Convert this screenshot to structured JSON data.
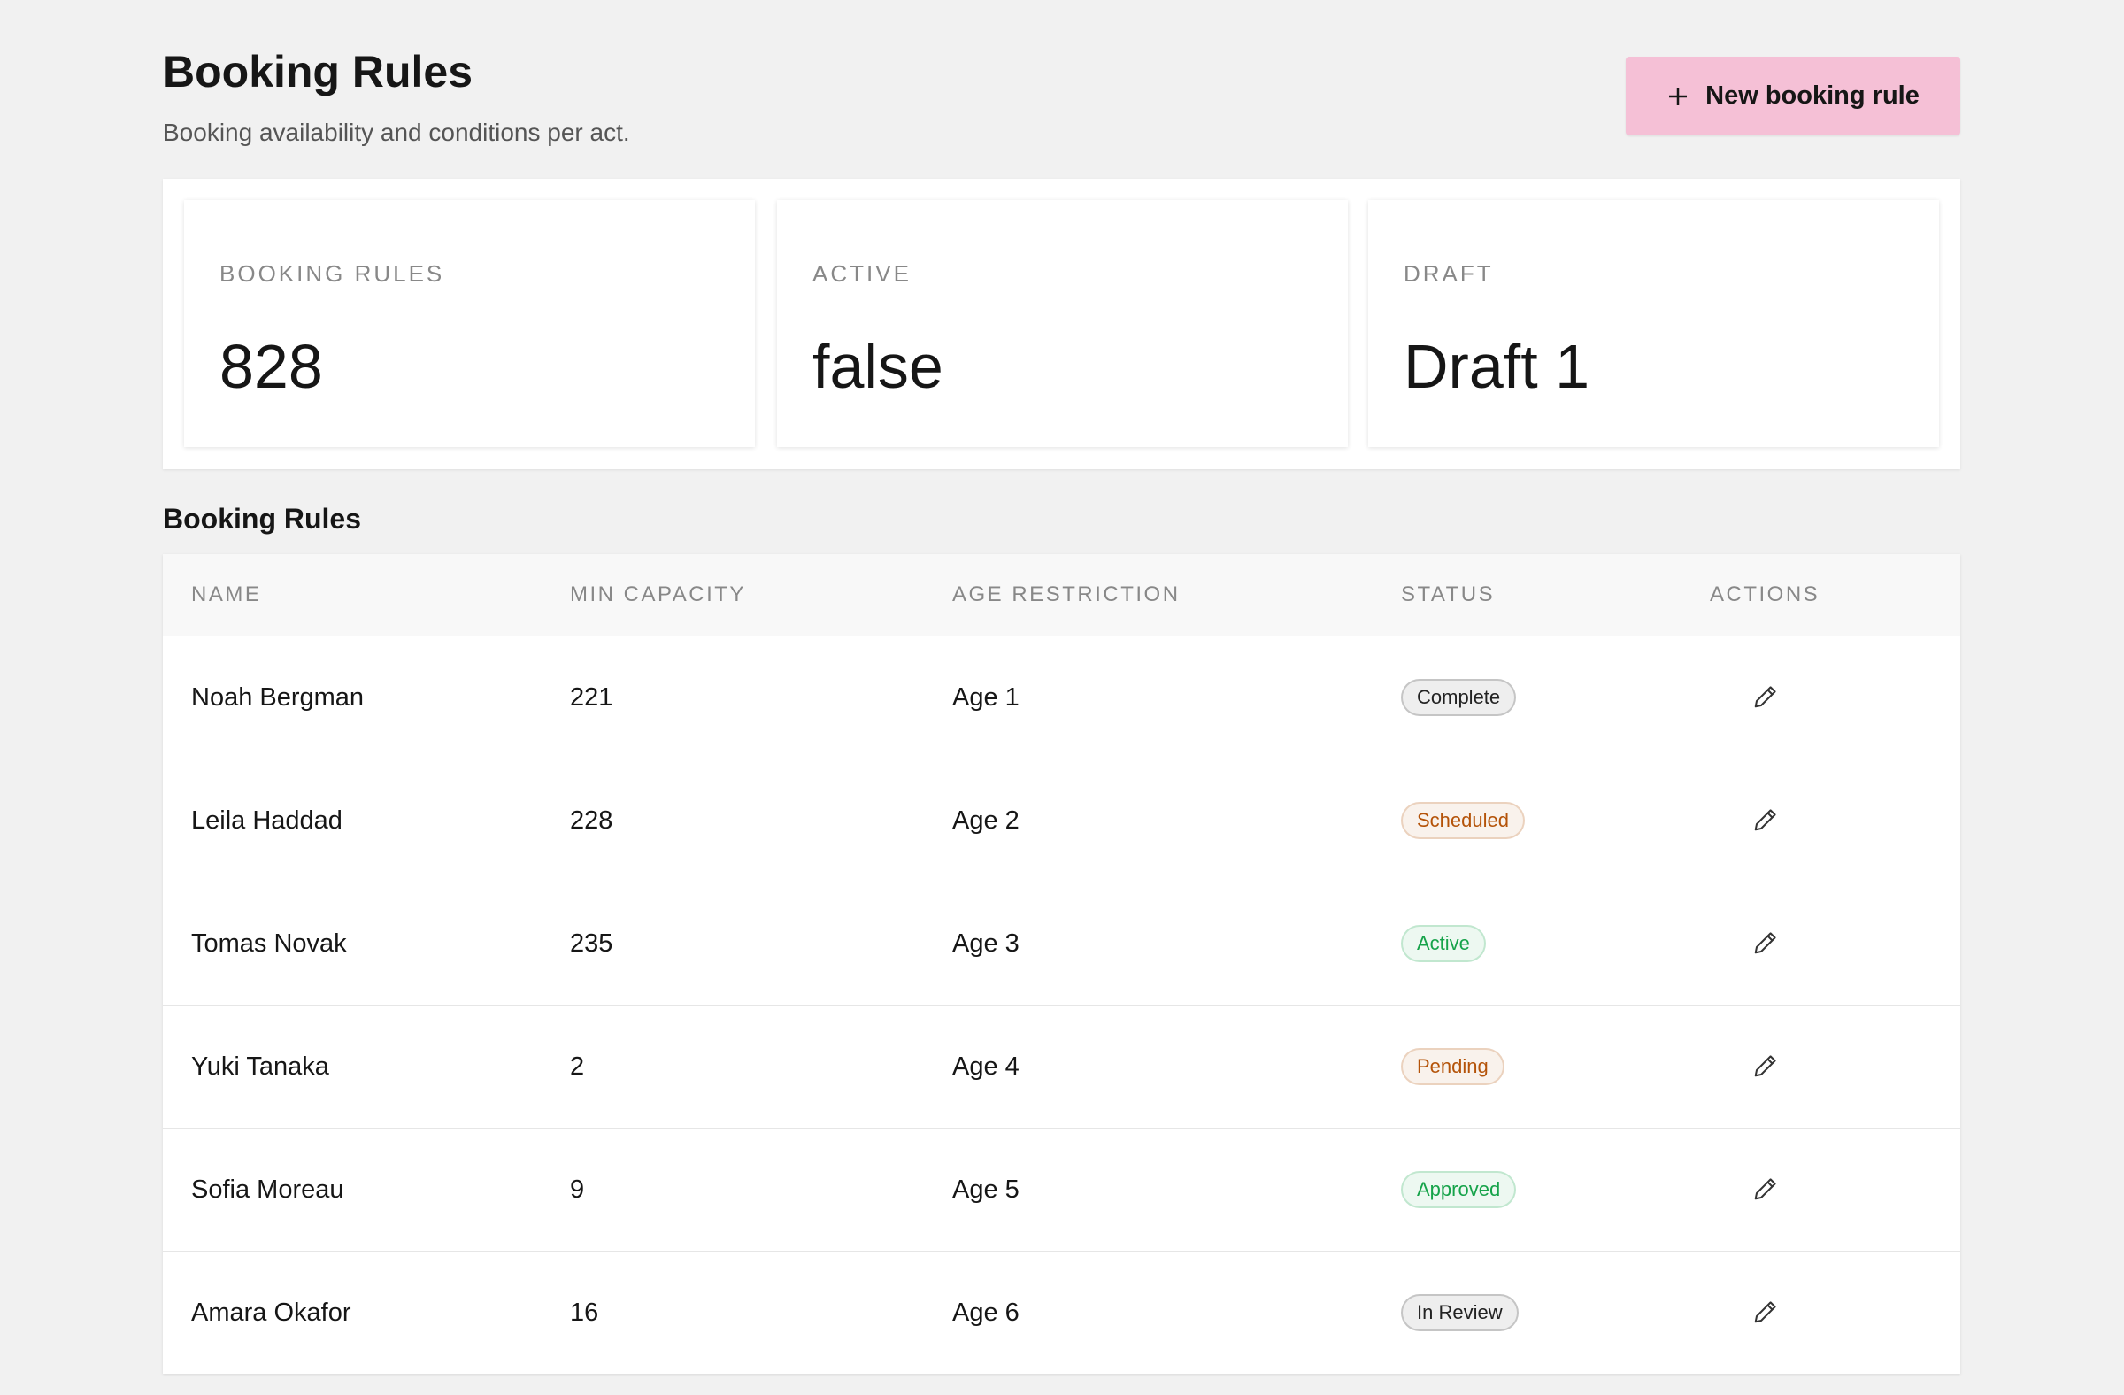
{
  "header": {
    "title": "Booking Rules",
    "subtitle": "Booking availability and conditions per act.",
    "button": "New booking rule"
  },
  "stats": [
    {
      "label": "BOOKING RULES",
      "value": 828
    },
    {
      "label": "ACTIVE",
      "value": "false"
    },
    {
      "label": "DRAFT",
      "value": "Draft 1"
    }
  ],
  "table": {
    "title": "Booking Rules",
    "columns": [
      "NAME",
      "MIN CAPACITY",
      "AGE RESTRICTION",
      "STATUS",
      "ACTIONS"
    ],
    "rows": [
      {
        "name": "Noah Bergman",
        "min_capacity": 221,
        "age_restriction": "Age 1",
        "status": "Complete",
        "status_color": "#222222"
      },
      {
        "name": "Leila Haddad",
        "min_capacity": 228,
        "age_restriction": "Age 2",
        "status": "Scheduled",
        "status_color": "#b45309"
      },
      {
        "name": "Tomas Novak",
        "min_capacity": 235,
        "age_restriction": "Age 3",
        "status": "Active",
        "status_color": "#16a34a"
      },
      {
        "name": "Yuki Tanaka",
        "min_capacity": 2,
        "age_restriction": "Age 4",
        "status": "Pending",
        "status_color": "#b45309"
      },
      {
        "name": "Sofia Moreau",
        "min_capacity": 9,
        "age_restriction": "Age 5",
        "status": "Approved",
        "status_color": "#16a34a"
      },
      {
        "name": "Amara Okafor",
        "min_capacity": 16,
        "age_restriction": "Age 6",
        "status": "In Review",
        "status_color": "#222222"
      }
    ]
  }
}
